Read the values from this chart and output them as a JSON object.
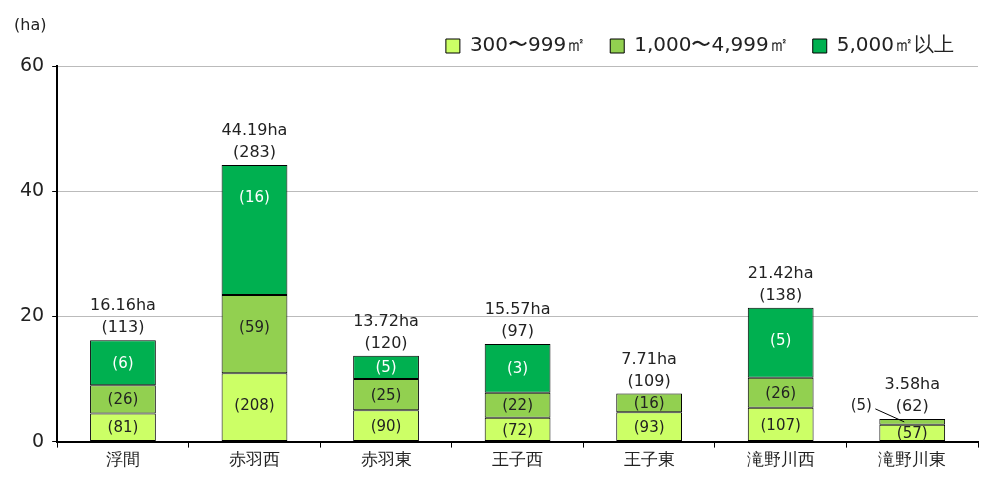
{
  "chart_data": {
    "type": "bar",
    "stacked": true,
    "ylabel": "(ha)",
    "categories": [
      "浮間",
      "赤羽西",
      "赤羽東",
      "王子西",
      "王子東",
      "滝野川西",
      "滝野川東"
    ],
    "series": [
      {
        "name": "300〜999㎡",
        "color": "#ccff66",
        "values": [
          4.5,
          10.9,
          5.0,
          3.8,
          4.7,
          5.4,
          2.7
        ]
      },
      {
        "name": "1,000〜4,999㎡",
        "color": "#92d050",
        "values": [
          4.5,
          12.5,
          5.0,
          4.0,
          3.0,
          4.8,
          0.9
        ]
      },
      {
        "name": "5,000㎡以上",
        "color": "#00b050",
        "values": [
          7.2,
          20.8,
          3.7,
          7.8,
          null,
          11.2,
          null
        ]
      }
    ],
    "totals": [
      "16.16ha (113)",
      "44.19ha (283)",
      "13.72ha (120)",
      "15.57ha (97)",
      "7.71ha (109)",
      "21.42ha (138)",
      "3.58ha (62)"
    ],
    "annotations": [
      {
        "text": "(81)",
        "x": "浮間",
        "y": 4.5
      },
      {
        "text": "(26)",
        "x": "浮間",
        "y": 9.0
      },
      {
        "text": "(6)",
        "x": "浮間",
        "y": 16.2
      },
      {
        "text": "(208)",
        "x": "赤羽西",
        "y": 10.9
      },
      {
        "text": "(59)",
        "x": "赤羽西",
        "y": 23.4
      },
      {
        "text": "(16)",
        "x": "赤羽西",
        "y": 44.2
      },
      {
        "text": "(90)",
        "x": "赤羽東",
        "y": 5.0
      },
      {
        "text": "(25)",
        "x": "赤羽東",
        "y": 10.0
      },
      {
        "text": "(5)",
        "x": "赤羽東",
        "y": 13.7
      },
      {
        "text": "(72)",
        "x": "王子西",
        "y": 3.8
      },
      {
        "text": "(22)",
        "x": "王子西",
        "y": 7.8
      },
      {
        "text": "(3)",
        "x": "王子西",
        "y": 15.6
      },
      {
        "text": "(93)",
        "x": "王子東",
        "y": 4.7
      },
      {
        "text": "(16)",
        "x": "王子東",
        "y": 7.7
      },
      {
        "text": "(107)",
        "x": "滝野川西",
        "y": 5.4
      },
      {
        "text": "(26)",
        "x": "滝野川西",
        "y": 10.2
      },
      {
        "text": "(5)",
        "x": "滝野川西",
        "y": 21.4
      },
      {
        "text": "(57)",
        "x": "滝野川東",
        "y": 2.7
      },
      {
        "text": "(5)",
        "x": "滝野川東",
        "y": 3.6
      }
    ],
    "ylim": [
      0,
      60
    ],
    "yticks": [
      0,
      20,
      40,
      60
    ],
    "grid": "y",
    "legend": "top right"
  }
}
